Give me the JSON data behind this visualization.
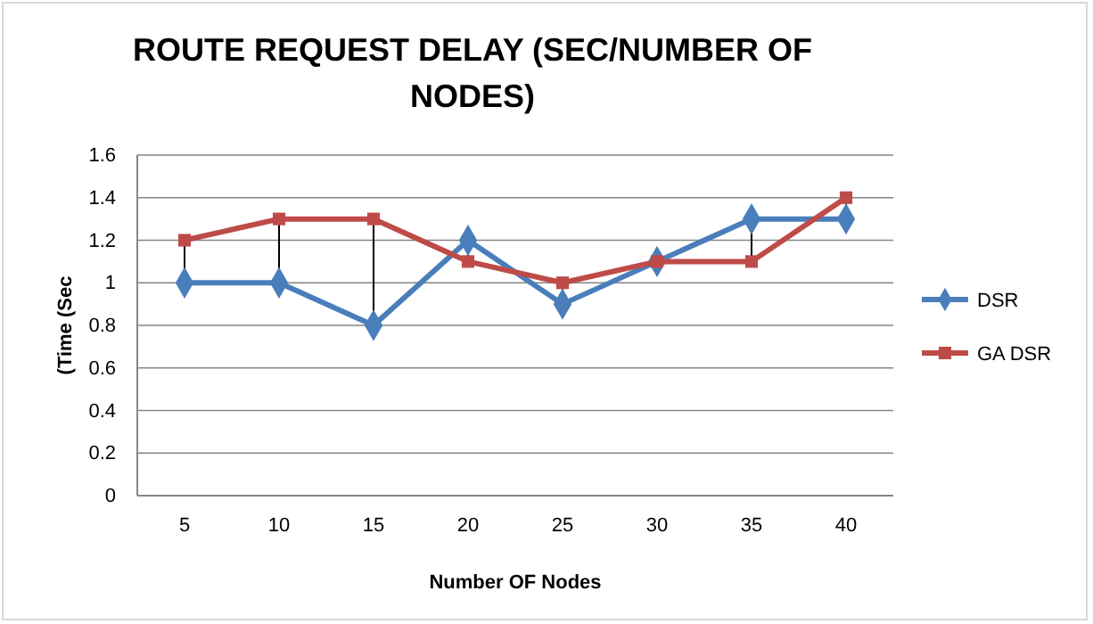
{
  "chart_data": {
    "type": "line",
    "title": "ROUTE REQUEST DELAY (SEC/NUMBER OF NODES)",
    "xlabel": "Number OF Nodes",
    "ylabel": "(Time (Sec",
    "categories": [
      "5",
      "10",
      "15",
      "20",
      "25",
      "30",
      "35",
      "40"
    ],
    "series": [
      {
        "name": "DSR",
        "color": "#4a7ebb",
        "marker": "diamond",
        "values": [
          1,
          1,
          0.8,
          1.2,
          0.9,
          1.1,
          1.3,
          1.3
        ]
      },
      {
        "name": "GA DSR",
        "color": "#be4b48",
        "marker": "square",
        "values": [
          1.2,
          1.3,
          1.3,
          1.1,
          1.0,
          1.1,
          1.1,
          1.4
        ]
      }
    ],
    "ylim": [
      0,
      1.6
    ],
    "yticks": [
      0,
      0.2,
      0.4,
      0.6,
      0.8,
      1,
      1.2,
      1.4,
      1.6
    ],
    "grid": "y",
    "legend": "right"
  }
}
